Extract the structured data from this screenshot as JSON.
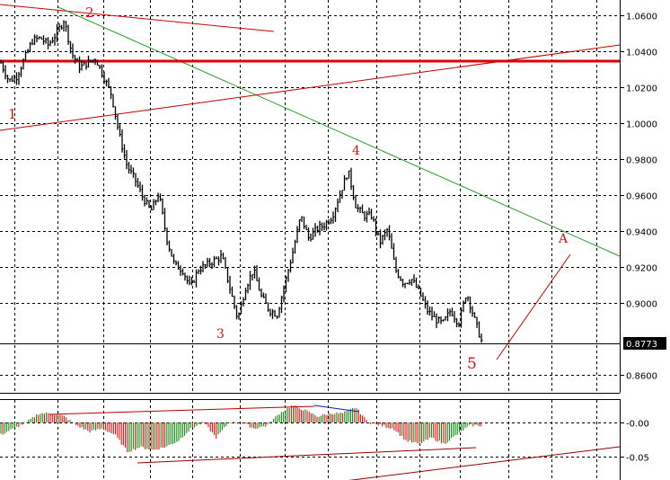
{
  "chart_data": {
    "type": "ohlc",
    "price_axis": {
      "ticks": [
        "1.0600",
        "1.0400",
        "1.0200",
        "1.0000",
        "0.9800",
        "0.9600",
        "0.9400",
        "0.9200",
        "0.9000",
        "0.8600"
      ],
      "range": [
        0.85,
        1.0685
      ]
    },
    "current_price": "0.8773",
    "price_path": [
      1.0335,
      1.0235,
      1.026,
      1.036,
      1.046,
      1.0475,
      1.0435,
      1.0495,
      1.0575,
      1.0385,
      1.031,
      1.0335,
      1.036,
      1.026,
      1.016,
      0.9935,
      0.976,
      0.9685,
      0.9585,
      0.951,
      0.961,
      0.936,
      0.921,
      0.9185,
      0.9085,
      0.9185,
      0.921,
      0.9235,
      0.926,
      0.9085,
      0.891,
      0.9085,
      0.9185,
      0.9035,
      0.896,
      0.8935,
      0.911,
      0.9285,
      0.9485,
      0.936,
      0.941,
      0.9435,
      0.9485,
      0.961,
      0.9735,
      0.9535,
      0.9485,
      0.9485,
      0.9335,
      0.941,
      0.9185,
      0.911,
      0.9135,
      0.906,
      0.896,
      0.891,
      0.8885,
      0.896,
      0.8885,
      0.906,
      0.891,
      0.8773
    ],
    "oscillator": {
      "ticks": [
        "-0.00",
        "-0.05"
      ],
      "values": [
        -0.02,
        -0.01,
        0.0,
        0.015,
        0.015,
        0.01,
        -0.005,
        -0.015,
        -0.01,
        -0.02,
        -0.048,
        -0.04,
        -0.045,
        -0.04,
        -0.03,
        -0.01,
        0.0,
        -0.025,
        0.0,
        0.0,
        -0.01,
        -0.005,
        0.015,
        0.028,
        0.02,
        0.01,
        0.015,
        0.015,
        0.025,
        0.0,
        -0.005,
        -0.01,
        -0.03,
        -0.035,
        -0.025,
        -0.035,
        -0.02,
        -0.005,
        -0.005
      ],
      "rising_color": "#138a13",
      "falling_color": "#e01010"
    },
    "wave_labels": [
      "1",
      "2",
      "3",
      "4",
      "5",
      "A"
    ],
    "grid": true,
    "colors": {
      "bars": "#000000",
      "trendline": "#d00000",
      "channel": "#9a0000",
      "green_line": "#2aa02a",
      "blue_line": "#1a1aa0"
    }
  }
}
